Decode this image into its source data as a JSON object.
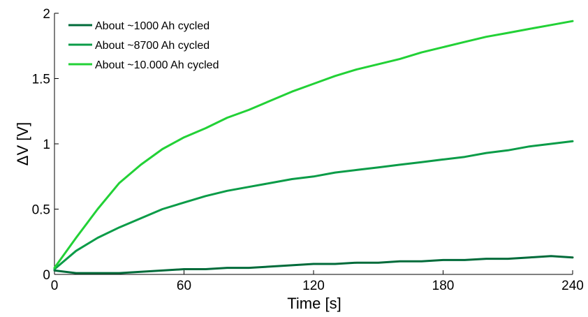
{
  "chart_data": {
    "type": "line",
    "title": "",
    "xlabel": "Time [s]",
    "ylabel": "ΔV [V]",
    "xlim": [
      0,
      240
    ],
    "ylim": [
      0,
      2
    ],
    "x_ticks": [
      "0",
      "60",
      "120",
      "180",
      "240"
    ],
    "y_ticks": [
      "0",
      "0.5",
      "1",
      "1.5",
      "2"
    ],
    "grid": false,
    "legend_position": "top-left",
    "x": [
      0,
      10,
      20,
      30,
      40,
      50,
      60,
      70,
      80,
      90,
      100,
      110,
      120,
      130,
      140,
      150,
      160,
      170,
      180,
      190,
      200,
      210,
      220,
      230,
      240
    ],
    "series": [
      {
        "name": "About ~1000 Ah cycled",
        "color": "#006b3a",
        "values": [
          0.03,
          0.01,
          0.01,
          0.01,
          0.02,
          0.03,
          0.04,
          0.04,
          0.05,
          0.05,
          0.06,
          0.07,
          0.08,
          0.08,
          0.09,
          0.09,
          0.1,
          0.1,
          0.11,
          0.11,
          0.12,
          0.12,
          0.13,
          0.14,
          0.13
        ]
      },
      {
        "name": "About ~8700 Ah cycled",
        "color": "#0b9c48",
        "values": [
          0.04,
          0.18,
          0.28,
          0.36,
          0.43,
          0.5,
          0.55,
          0.6,
          0.64,
          0.67,
          0.7,
          0.73,
          0.75,
          0.78,
          0.8,
          0.82,
          0.84,
          0.86,
          0.88,
          0.9,
          0.93,
          0.95,
          0.98,
          1.0,
          1.02
        ]
      },
      {
        "name": "About ~10.000 Ah cycled",
        "color": "#22d136",
        "values": [
          0.05,
          0.28,
          0.5,
          0.7,
          0.84,
          0.96,
          1.05,
          1.12,
          1.2,
          1.26,
          1.33,
          1.4,
          1.46,
          1.52,
          1.57,
          1.61,
          1.65,
          1.7,
          1.74,
          1.78,
          1.82,
          1.85,
          1.88,
          1.91,
          1.94
        ]
      }
    ]
  }
}
